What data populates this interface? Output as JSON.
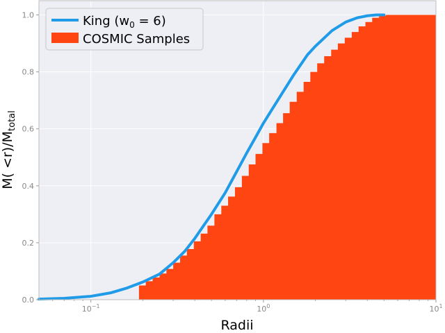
{
  "chart_data": {
    "type": "area",
    "xscale": "log",
    "xlim": [
      0.05,
      10
    ],
    "ylim": [
      0,
      1.05
    ],
    "xlabel": "Radii",
    "ylabel": {
      "base": "M( <r)/M",
      "sub": "total"
    },
    "grid": true,
    "legend": "top-left",
    "x_ticks": [
      {
        "base": "10",
        "exp": "−1",
        "value": 0.1
      },
      {
        "base": "10",
        "exp": "0",
        "value": 1
      },
      {
        "base": "10",
        "exp": "1",
        "value": 10
      }
    ],
    "y_ticks": [
      "0.0",
      "0.2",
      "0.4",
      "0.6",
      "0.8",
      "1.0"
    ],
    "series": [
      {
        "name": {
          "pre": "King (w",
          "sub": "0",
          "post": " = 6)"
        },
        "kind": "line",
        "color": "#1f9be8",
        "x": [
          0.05,
          0.07,
          0.1,
          0.13,
          0.16,
          0.2,
          0.25,
          0.3,
          0.35,
          0.4,
          0.45,
          0.5,
          0.6,
          0.7,
          0.8,
          0.9,
          1.0,
          1.1,
          1.3,
          1.5,
          1.8,
          2.0,
          2.5,
          3.0,
          3.5,
          4.0,
          4.5,
          5.0
        ],
        "y": [
          0.002,
          0.005,
          0.012,
          0.024,
          0.04,
          0.062,
          0.09,
          0.13,
          0.17,
          0.215,
          0.26,
          0.3,
          0.375,
          0.45,
          0.515,
          0.57,
          0.62,
          0.66,
          0.73,
          0.79,
          0.86,
          0.89,
          0.945,
          0.975,
          0.99,
          0.997,
          1.0,
          1.0
        ]
      },
      {
        "name": "COSMIC Samples",
        "kind": "step-area",
        "color": "#ff4511",
        "x": [
          0.19,
          0.208,
          0.228,
          0.25,
          0.274,
          0.3,
          0.329,
          0.36,
          0.395,
          0.433,
          0.474,
          0.52,
          0.57,
          0.624,
          0.684,
          0.75,
          0.822,
          0.9,
          0.987,
          1.08,
          1.19,
          1.3,
          1.42,
          1.56,
          1.71,
          1.87,
          2.05,
          2.25,
          2.47,
          2.7,
          2.96,
          3.25,
          3.56,
          3.9,
          4.27,
          4.68,
          5.13,
          10
        ],
        "y": [
          0.05,
          0.065,
          0.078,
          0.092,
          0.108,
          0.13,
          0.155,
          0.178,
          0.205,
          0.232,
          0.26,
          0.3,
          0.33,
          0.362,
          0.395,
          0.435,
          0.475,
          0.512,
          0.55,
          0.585,
          0.62,
          0.655,
          0.695,
          0.73,
          0.765,
          0.8,
          0.83,
          0.855,
          0.878,
          0.9,
          0.92,
          0.94,
          0.96,
          0.975,
          0.99,
          0.998,
          1.0,
          1.0
        ]
      }
    ]
  }
}
